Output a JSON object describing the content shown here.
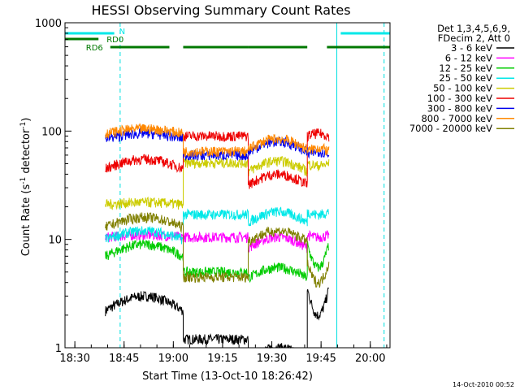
{
  "chart_data": {
    "type": "line",
    "title": "HESSI Observing Summary Count Rates",
    "xlabel": "Start Time (13-Oct-10 18:26:42)",
    "ylabel_main": "Count Rate (s",
    "ylabel_sup1": "-1",
    "ylabel_mid": " detector",
    "ylabel_sup2": "-1",
    "ylabel_end": ")",
    "yscale": "log",
    "ylim": [
      1,
      1000
    ],
    "xlim_min": [
      18.45,
      20.1
    ],
    "x_ticks": [
      "18:30",
      "18:45",
      "19:00",
      "19:15",
      "19:30",
      "19:45",
      "20:00"
    ],
    "y_ticks": [
      "1",
      "10",
      "100",
      "1000"
    ],
    "stamp": "14-Oct-2010 00:52",
    "legend_header": [
      "Det 1,3,4,5,6,9,",
      "FDecim 2, Att 0"
    ],
    "flags": [
      {
        "label": "N",
        "color": "#00e8e8",
        "spans": [
          [
            18.45,
            18.7
          ],
          [
            19.85,
            20.1
          ]
        ]
      },
      {
        "label": "RD0",
        "color": "#007800",
        "spans": [
          [
            18.45,
            18.62
          ]
        ]
      },
      {
        "label": "RD6",
        "color": "#007800",
        "spans": [
          [
            18.68,
            18.98
          ],
          [
            19.05,
            19.38
          ],
          [
            19.38,
            19.68
          ],
          [
            19.78,
            20.1
          ]
        ]
      }
    ],
    "night_lines": [
      18.45,
      18.73,
      19.83,
      20.07
    ],
    "segments": [
      [
        18.655,
        19.05
      ],
      [
        19.05,
        19.38
      ],
      [
        19.38,
        19.68
      ],
      [
        19.68,
        19.79
      ]
    ],
    "series": [
      {
        "name": "3 - 6 keV",
        "color": "#000000",
        "values": [
          2.2,
          3.0,
          1.2,
          1.0,
          3.5,
          2.0
        ]
      },
      {
        "name": "6 - 12 keV",
        "color": "#ff00ff",
        "values": [
          10.5,
          11.0,
          10.5,
          10.5,
          11.0,
          10.5
        ]
      },
      {
        "name": "12 - 25 keV",
        "color": "#00cc00",
        "values": [
          7.0,
          9.0,
          5.0,
          5.5,
          9.0,
          5.5
        ]
      },
      {
        "name": "25 - 50 keV",
        "color": "#00e8e8",
        "values": [
          10.0,
          12.0,
          17.0,
          18.0,
          18.0,
          17.0
        ]
      },
      {
        "name": "50 - 100 keV",
        "color": "#cccc00",
        "values": [
          21.0,
          22.0,
          51.0,
          53.0,
          50.0,
          48.0
        ]
      },
      {
        "name": "100 - 300 keV",
        "color": "#ee0000",
        "values": [
          45.0,
          55.0,
          90.0,
          40.0,
          90.0,
          95.0
        ]
      },
      {
        "name": "300 - 800 keV",
        "color": "#0000ee",
        "values": [
          85.0,
          95.0,
          60.0,
          80.0,
          60.0,
          65.0
        ]
      },
      {
        "name": "800 - 7000 keV",
        "color": "#ff8800",
        "values": [
          95.0,
          105.0,
          65.0,
          85.0,
          65.0,
          70.0
        ]
      },
      {
        "name": "7000 - 20000 keV",
        "color": "#808000",
        "values": [
          13.0,
          16.0,
          4.5,
          12.0,
          6.0,
          4.0
        ]
      }
    ]
  }
}
